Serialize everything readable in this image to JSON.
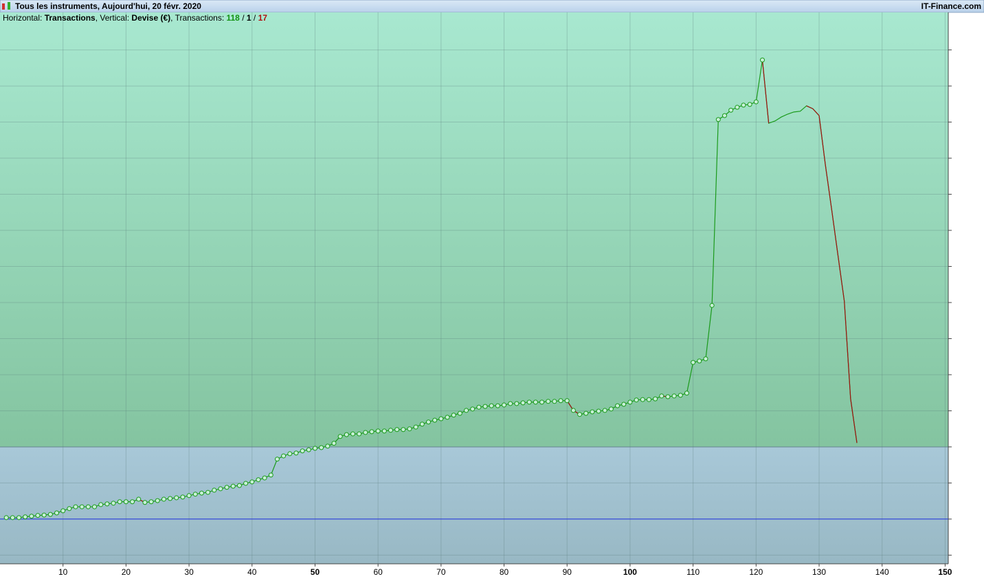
{
  "header": {
    "title": "Tous les instruments, Aujourd'hui, 20 févr. 2020",
    "brand": "IT-Finance.com"
  },
  "info": [
    {
      "text": "Horizontal: "
    },
    {
      "text": "Transactions",
      "bold": true
    },
    {
      "text": ", Vertical: "
    },
    {
      "text": "Devise (€)",
      "bold": true
    },
    {
      "text": ", Transactions: "
    },
    {
      "text": "118",
      "bold": true,
      "color": "#149414"
    },
    {
      "text": " / "
    },
    {
      "text": "1",
      "bold": true,
      "color": "#000000"
    },
    {
      "text": " / "
    },
    {
      "text": "17",
      "bold": true,
      "color": "#b01010"
    }
  ],
  "chart_data": {
    "type": "line",
    "x": [
      1,
      2,
      3,
      4,
      5,
      6,
      7,
      8,
      9,
      10,
      11,
      12,
      13,
      14,
      15,
      16,
      17,
      18,
      19,
      20,
      21,
      22,
      23,
      24,
      25,
      26,
      27,
      28,
      29,
      30,
      31,
      32,
      33,
      34,
      35,
      36,
      37,
      38,
      39,
      40,
      41,
      42,
      43,
      44,
      45,
      46,
      47,
      48,
      49,
      50,
      51,
      52,
      53,
      54,
      55,
      56,
      57,
      58,
      59,
      60,
      61,
      62,
      63,
      64,
      65,
      66,
      67,
      68,
      69,
      70,
      71,
      72,
      73,
      74,
      75,
      76,
      77,
      78,
      79,
      80,
      81,
      82,
      83,
      84,
      85,
      86,
      87,
      88,
      89,
      90,
      91,
      92,
      93,
      94,
      95,
      96,
      97,
      98,
      99,
      100,
      101,
      102,
      103,
      104,
      105,
      106,
      107,
      108,
      109,
      110,
      111,
      112,
      113,
      114,
      115,
      116,
      117,
      118,
      119,
      120,
      121,
      122,
      123,
      124,
      125,
      126,
      127,
      128,
      129,
      130,
      131,
      132,
      133,
      134,
      135,
      136
    ],
    "series": [
      {
        "color": "#1a9a1a",
        "down_color": "#a01010",
        "values": [
          0.04,
          0.04,
          0.04,
          0.06,
          0.08,
          0.1,
          0.11,
          0.13,
          0.17,
          0.23,
          0.29,
          0.34,
          0.34,
          0.34,
          0.34,
          0.4,
          0.42,
          0.44,
          0.48,
          0.48,
          0.48,
          0.55,
          0.46,
          0.48,
          0.51,
          0.55,
          0.57,
          0.59,
          0.61,
          0.65,
          0.69,
          0.72,
          0.74,
          0.8,
          0.84,
          0.88,
          0.91,
          0.93,
          0.99,
          1.03,
          1.09,
          1.14,
          1.22,
          1.66,
          1.75,
          1.81,
          1.83,
          1.89,
          1.92,
          1.96,
          1.98,
          2.02,
          2.1,
          2.29,
          2.34,
          2.36,
          2.36,
          2.4,
          2.42,
          2.44,
          2.44,
          2.46,
          2.48,
          2.48,
          2.5,
          2.55,
          2.63,
          2.69,
          2.74,
          2.78,
          2.82,
          2.88,
          2.93,
          3.01,
          3.05,
          3.1,
          3.12,
          3.14,
          3.14,
          3.16,
          3.2,
          3.2,
          3.22,
          3.24,
          3.24,
          3.24,
          3.26,
          3.26,
          3.28,
          3.28,
          3.01,
          2.9,
          2.93,
          2.97,
          2.99,
          3.01,
          3.05,
          3.14,
          3.18,
          3.24,
          3.3,
          3.31,
          3.31,
          3.33,
          3.41,
          3.39,
          3.41,
          3.43,
          3.49,
          4.34,
          4.38,
          4.44,
          5.92,
          11.07,
          11.18,
          11.33,
          11.41,
          11.47,
          11.49,
          11.56,
          12.72,
          10.97,
          11.03,
          11.14,
          11.22,
          11.28,
          11.3,
          11.45,
          11.37,
          11.18,
          9.81,
          8.57,
          7.3,
          6.04,
          3.33,
          2.11
        ]
      }
    ],
    "baseline": 0,
    "baseline_color": "#2030e0",
    "zone_split": 2,
    "upper_zone_color": [
      "#a8e8d0",
      "#84c4a0"
    ],
    "lower_zone_color": [
      "#a8c8d8",
      "#98b8c4"
    ],
    "xlim": [
      0,
      150.5
    ],
    "xticks": [
      10,
      20,
      30,
      40,
      50,
      60,
      70,
      80,
      90,
      100,
      110,
      120,
      130,
      140,
      150
    ],
    "ylim": [
      -1.24,
      14.04
    ],
    "yticks": [
      -1,
      0,
      1,
      2,
      3,
      4,
      5,
      6,
      7,
      8,
      9,
      10,
      11,
      12,
      13
    ],
    "grid": true
  }
}
